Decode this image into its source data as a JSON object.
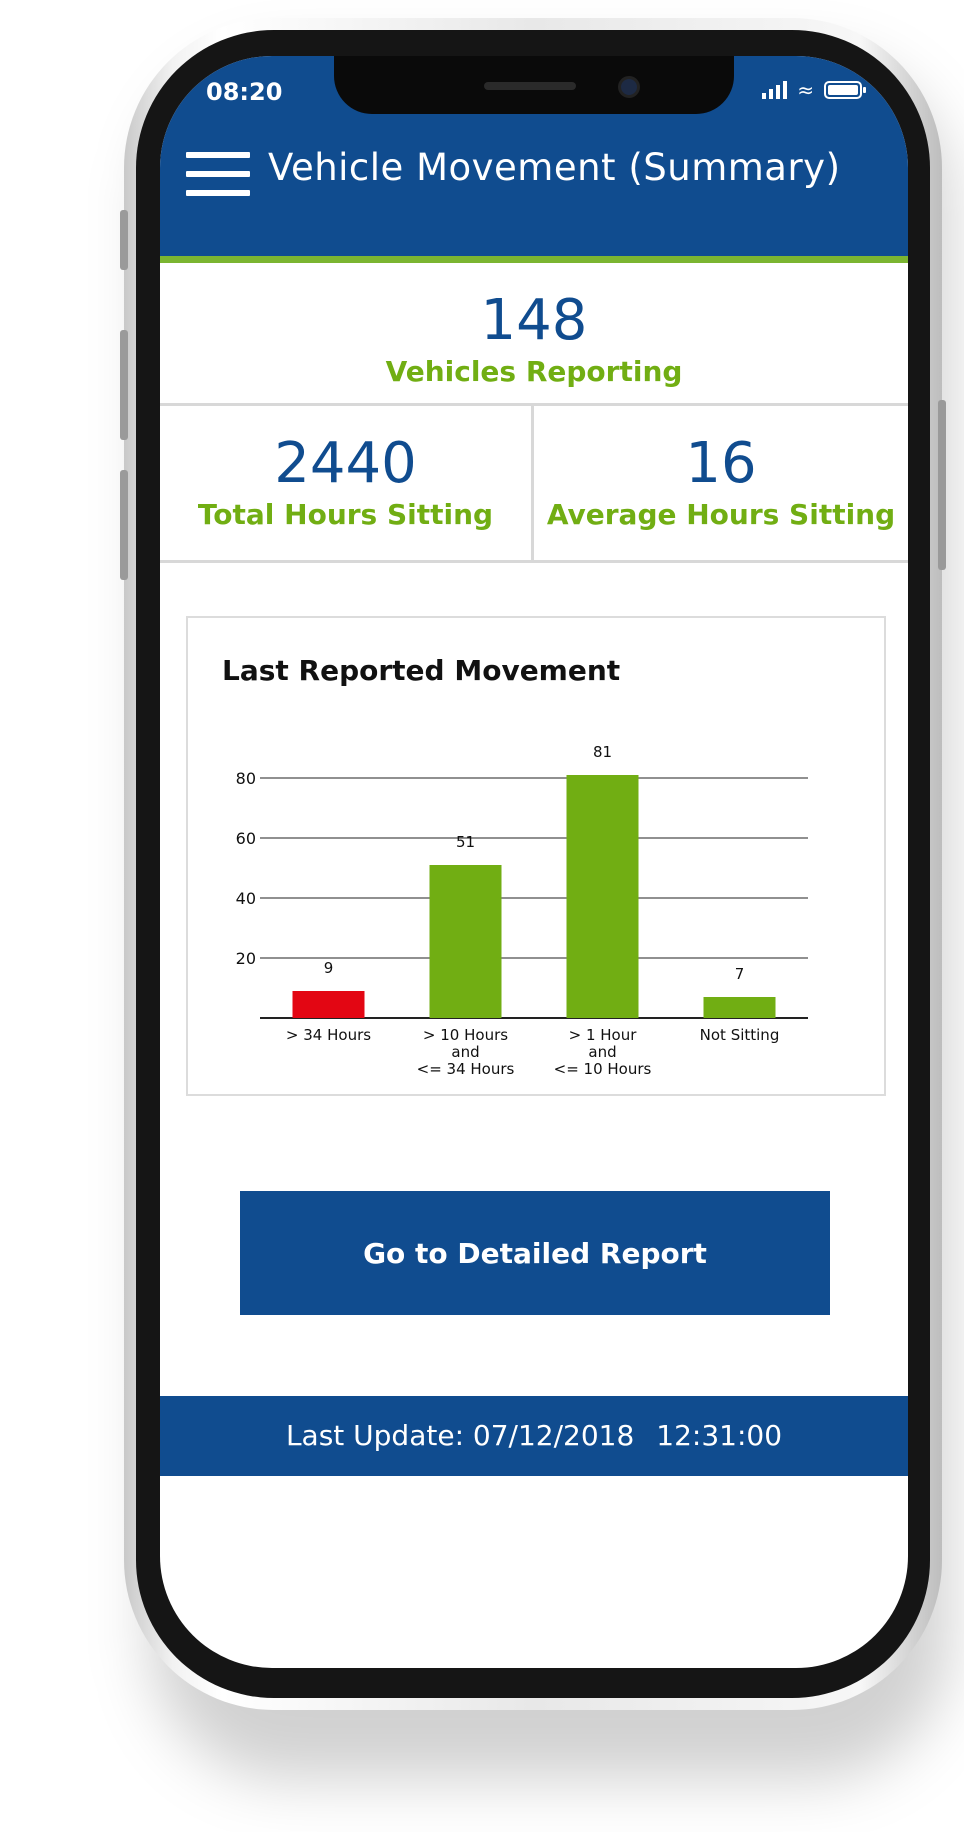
{
  "status_bar": {
    "time": "08:20"
  },
  "header": {
    "title": "Vehicle Movement (Summary)"
  },
  "kpis": {
    "vehicles_reporting": {
      "value": "148",
      "label": "Vehicles Reporting"
    },
    "total_hours_sitting": {
      "value": "2440",
      "label": "Total Hours Sitting"
    },
    "average_hours_sitting": {
      "value": "16",
      "label": "Average Hours Sitting"
    }
  },
  "chart_data": {
    "type": "bar",
    "title": "Last Reported Movement",
    "categories": [
      [
        "> 34 Hours"
      ],
      [
        "> 10 Hours",
        "and",
        "<= 34 Hours"
      ],
      [
        "> 1 Hour",
        "and",
        "<= 10 Hours"
      ],
      [
        "Not Sitting"
      ]
    ],
    "values": [
      9,
      51,
      81,
      7
    ],
    "data_labels": [
      "9",
      "51",
      "81",
      "7"
    ],
    "bar_colors": [
      "#e30613",
      "#71ae13",
      "#71ae13",
      "#71ae13"
    ],
    "yticks": [
      20,
      40,
      60,
      80
    ],
    "ylim": [
      0,
      90
    ],
    "grid": true,
    "xlabel": "",
    "ylabel": ""
  },
  "cta": {
    "label": "Go to Detailed Report"
  },
  "footer": {
    "prefix": "Last Update:",
    "date": "07/12/2018",
    "time": "12:31:00"
  },
  "colors": {
    "primary": "#104c8f",
    "accent_green": "#71ae13",
    "alert_red": "#e30613"
  }
}
